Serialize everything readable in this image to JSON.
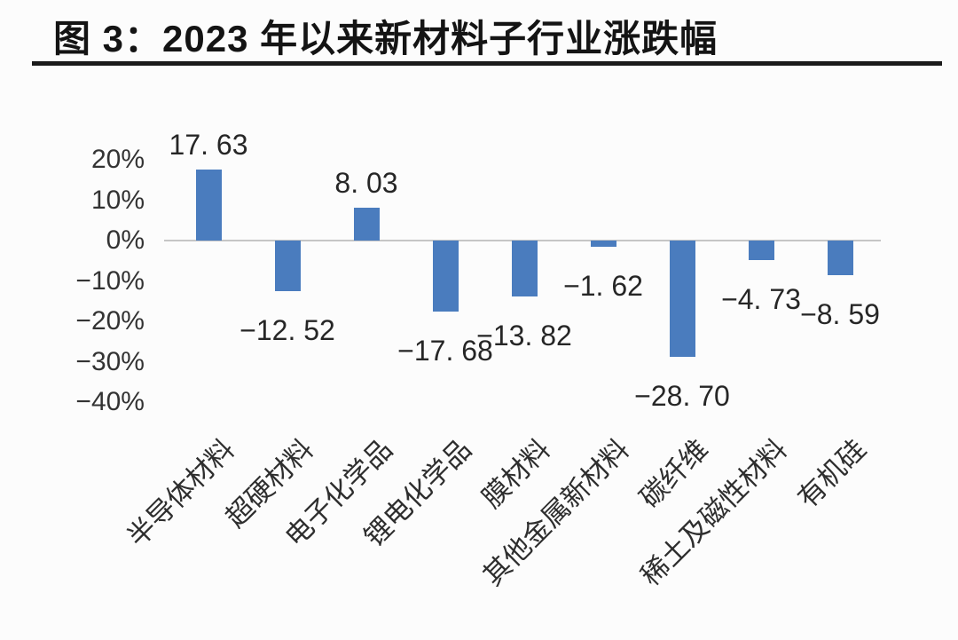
{
  "header": {
    "title": "图 3：2023 年以来新材料子行业涨跌幅"
  },
  "chart_data": {
    "type": "bar",
    "title": "图 3：2023 年以来新材料子行业涨跌幅",
    "categories": [
      "半导体材料",
      "超硬材料",
      "电子化学品",
      "锂电化学品",
      "膜材料",
      "其他金属新材料",
      "碳纤维",
      "稀土及磁性材料",
      "有机硅"
    ],
    "values": [
      17.63,
      -12.52,
      8.03,
      -17.68,
      -13.82,
      -1.62,
      -28.7,
      -4.73,
      -8.59
    ],
    "value_labels": [
      "17. 63",
      "−12. 52",
      "8. 03",
      "−17. 68",
      "−13. 82",
      "−1. 62",
      "−28. 70",
      "−4. 73",
      "−8. 59"
    ],
    "unit": "%",
    "xlabel": "",
    "ylabel": "",
    "y_axis": {
      "tick_values": [
        20,
        10,
        0,
        -10,
        -20,
        -30,
        -40
      ],
      "tick_labels": [
        "20%",
        "10%",
        "0%",
        "−10%",
        "−20%",
        "−30%",
        "−40%"
      ],
      "range": [
        -40,
        20
      ]
    },
    "grid": false,
    "legend": false,
    "bar_color": "#4a7cbe",
    "axis_line_color": "#c6c6c6",
    "label_color": "#262626",
    "category_label_rotation_deg": 45
  }
}
